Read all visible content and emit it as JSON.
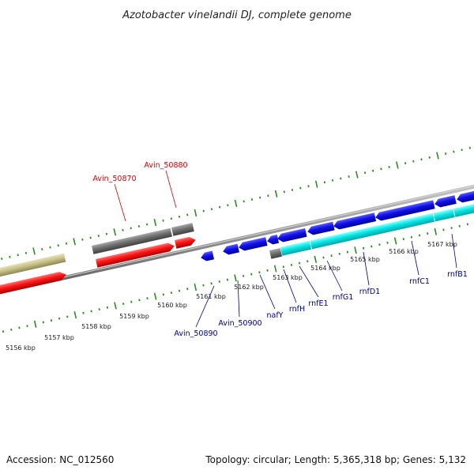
{
  "title": "Azotobacter vinelandii DJ, complete genome",
  "footer": {
    "accession": "Accession: NC_012560",
    "summary": "Topology: circular; Length: 5,365,318 bp; Genes: 5,132"
  },
  "colors": {
    "backbone": "#808080",
    "tick": "#2e8b22",
    "label_forward": "#d40000",
    "label_reverse": "#000080",
    "gene_blue": "#1010e8",
    "gene_cyan": "#00e5e5",
    "gene_red": "#ff1414",
    "gene_gray": "#707070",
    "gene_khaki": "#c8c088"
  },
  "scale": {
    "labels": [
      "5156 kbp",
      "5157 kbp",
      "5158 kbp",
      "5159 kbp",
      "5160 kbp",
      "5161 kbp",
      "5162 kbp",
      "5163 kbp",
      "5164 kbp",
      "5165 kbp",
      "5166 kbp",
      "5167 kbp"
    ]
  },
  "gene_labels": {
    "top": [
      "Avin_50870",
      "Avin_50880"
    ],
    "bottom": [
      "Avin_50890",
      "Avin_50900",
      "nafY",
      "rnfH",
      "rnfE1",
      "rnfG1",
      "rnfD1",
      "rnfC1",
      "rnfB1"
    ]
  }
}
